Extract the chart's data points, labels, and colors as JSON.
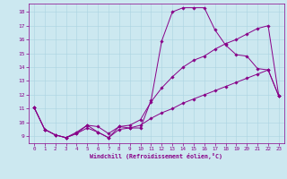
{
  "xlabel": "Windchill (Refroidissement éolien,°C)",
  "bg_color": "#cce8f0",
  "line_color": "#880088",
  "grid_color": "#aad4e0",
  "xlim": [
    -0.5,
    23.5
  ],
  "ylim": [
    8.5,
    18.6
  ],
  "xticks": [
    0,
    1,
    2,
    3,
    4,
    5,
    6,
    7,
    8,
    9,
    10,
    11,
    12,
    13,
    14,
    15,
    16,
    17,
    18,
    19,
    20,
    21,
    22,
    23
  ],
  "yticks": [
    9,
    10,
    11,
    12,
    13,
    14,
    15,
    16,
    17,
    18
  ],
  "series": [
    [
      11.1,
      9.5,
      9.1,
      8.9,
      9.2,
      9.8,
      9.3,
      8.9,
      9.7,
      9.6,
      9.6,
      11.6,
      15.9,
      18.0,
      18.3,
      18.3,
      18.3,
      16.7,
      15.6,
      14.9,
      14.8,
      13.9,
      13.8,
      11.9
    ],
    [
      11.1,
      9.5,
      9.1,
      8.9,
      9.3,
      9.8,
      9.7,
      9.2,
      9.7,
      9.8,
      10.2,
      11.5,
      12.5,
      13.3,
      14.0,
      14.5,
      14.8,
      15.3,
      15.7,
      16.0,
      16.4,
      16.8,
      17.0,
      11.9
    ],
    [
      11.1,
      9.5,
      9.1,
      8.9,
      9.2,
      9.6,
      9.3,
      8.9,
      9.5,
      9.6,
      9.8,
      10.3,
      10.7,
      11.0,
      11.4,
      11.7,
      12.0,
      12.3,
      12.6,
      12.9,
      13.2,
      13.5,
      13.8,
      11.9
    ]
  ]
}
